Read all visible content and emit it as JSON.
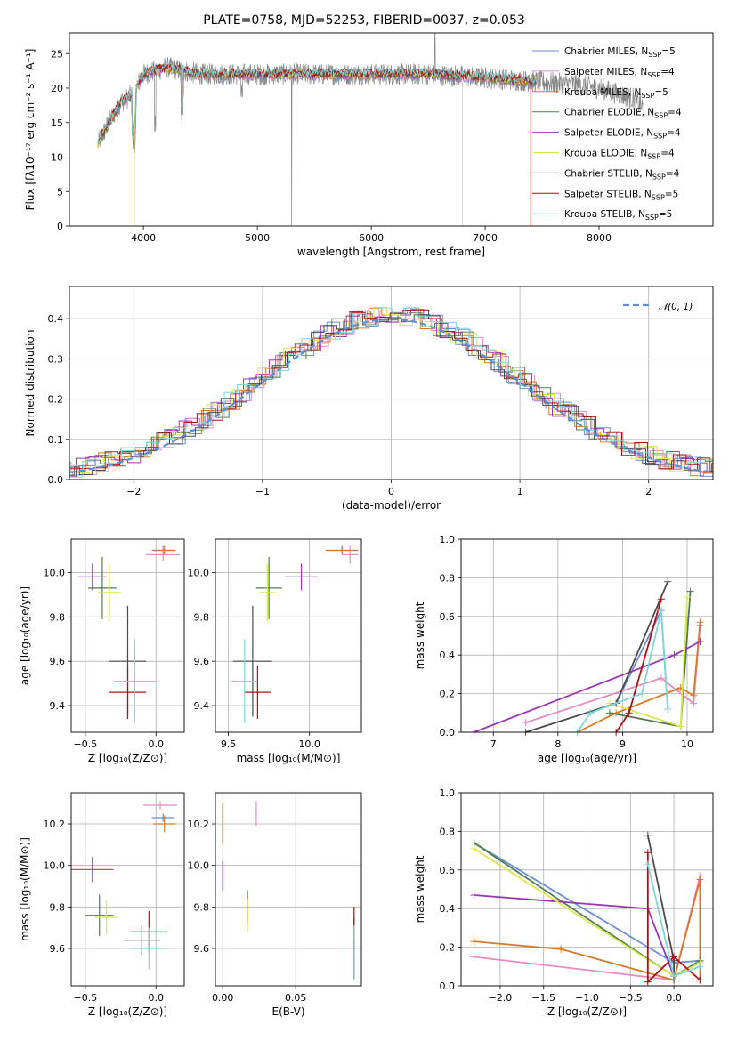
{
  "colors": [
    "#6a8fd6",
    "#e88ac4",
    "#d77a28",
    "#4f7d4f",
    "#9b35b5",
    "#d8e84a",
    "#4a4a4a",
    "#b01010",
    "#7ed7d8"
  ],
  "chart_data": [
    {
      "id": "spectrum",
      "type": "line",
      "title": "PLATE=0758, MJD=52253, FIBERID=0037, z=0.053",
      "xlabel": "wavelength [Angstrom, rest frame]",
      "ylabel": "Flux [fλ10⁻¹⁷ erg cm⁻² s⁻¹ A⁻¹]",
      "xlim": [
        3350,
        9000
      ],
      "ylim": [
        0,
        28
      ],
      "xticks": [
        "4000",
        "5000",
        "6000",
        "7000",
        "8000"
      ],
      "yticks": [
        "0",
        "5",
        "10",
        "15",
        "20",
        "25"
      ],
      "legend_position": "top-right",
      "series": [
        {
          "name": "Chabrier MILES, N",
          "sub": "SSP",
          "eq": "=5"
        },
        {
          "name": "Salpeter MILES, N",
          "sub": "SSP",
          "eq": "=4"
        },
        {
          "name": "Kroupa MILES, N",
          "sub": "SSP",
          "eq": "=5"
        },
        {
          "name": "Chabrier ELODIE, N",
          "sub": "SSP",
          "eq": "=4"
        },
        {
          "name": "Salpeter ELODIE, N",
          "sub": "SSP",
          "eq": "=4"
        },
        {
          "name": "Kroupa ELODIE, N",
          "sub": "SSP",
          "eq": "=4"
        },
        {
          "name": "Chabrier STELIB, N",
          "sub": "SSP",
          "eq": "=4"
        },
        {
          "name": "Salpeter STELIB, N",
          "sub": "SSP",
          "eq": "=5"
        },
        {
          "name": "Kroupa STELIB, N",
          "sub": "SSP",
          "eq": "=5"
        }
      ],
      "approx_continuum": {
        "x": [
          3600,
          3700,
          3800,
          3900,
          4000,
          4200,
          4500,
          5000,
          5500,
          6000,
          6500,
          7000,
          7400,
          7800,
          8000,
          8300,
          8400
        ],
        "y": [
          12,
          15,
          18,
          19,
          22,
          23,
          22,
          22,
          22,
          22,
          22,
          21.5,
          21,
          20.5,
          20,
          18.5,
          17
        ]
      }
    },
    {
      "id": "residual-hist",
      "type": "line",
      "xlabel": "(data-model)/error",
      "ylabel": "Normed distribution",
      "xlim": [
        -2.5,
        2.5
      ],
      "ylim": [
        0,
        0.48
      ],
      "xticks": [
        "−2",
        "−1",
        "0",
        "1",
        "2"
      ],
      "yticks": [
        "0.0",
        "0.1",
        "0.2",
        "0.3",
        "0.4"
      ],
      "legend": "𝒩(0, 1)",
      "legend_position": "top-right"
    },
    {
      "id": "age-vs-Z",
      "type": "scatter",
      "xlabel": "Z [log₁₀(Z/Z⊙)]",
      "ylabel": "age  [log₁₀(age/yr)]",
      "xlim": [
        -0.6,
        0.2
      ],
      "ylim": [
        9.28,
        10.15
      ],
      "xticks": [
        "−0.5",
        "0.0"
      ],
      "yticks": [
        "9.4",
        "9.6",
        "9.8",
        "10.0"
      ]
    },
    {
      "id": "age-vs-mass",
      "type": "scatter",
      "xlabel": "mass [log₁₀(M/M⊙)]",
      "xlim": [
        9.42,
        10.32
      ],
      "ylim": [
        9.28,
        10.15
      ],
      "xticks": [
        "9.5",
        "10.0"
      ],
      "yticks": [
        "9.4",
        "9.6",
        "9.8",
        "10.0"
      ]
    },
    {
      "id": "weight-vs-age",
      "type": "line",
      "xlabel": "age  [log₁₀(age/yr)]",
      "ylabel": "mass weight",
      "xlim": [
        6.5,
        10.4
      ],
      "ylim": [
        0,
        1.0
      ],
      "xticks": [
        "7",
        "8",
        "9",
        "10"
      ],
      "yticks": [
        "0.0",
        "0.2",
        "0.4",
        "0.6",
        "0.8",
        "1.0"
      ]
    },
    {
      "id": "mass-vs-Z",
      "type": "scatter",
      "xlabel": "Z [log₁₀(Z/Z⊙)]",
      "ylabel": "mass [log₁₀(M/M⊙)]",
      "xlim": [
        -0.6,
        0.2
      ],
      "ylim": [
        9.42,
        10.35
      ],
      "xticks": [
        "−0.5",
        "0.0"
      ],
      "yticks": [
        "9.6",
        "9.8",
        "10.0",
        "10.2"
      ]
    },
    {
      "id": "mass-vs-EBV",
      "type": "scatter",
      "xlabel": "E(B-V)",
      "xlim": [
        -0.005,
        0.095
      ],
      "ylim": [
        9.42,
        10.35
      ],
      "xticks": [
        "0.00",
        "0.05"
      ],
      "yticks": [
        "9.6",
        "9.8",
        "10.0",
        "10.2"
      ]
    },
    {
      "id": "weight-vs-Z",
      "type": "line",
      "xlabel": "Z [log₁₀(Z/Z⊙)]",
      "ylabel": "mass weight",
      "xlim": [
        -2.45,
        0.45
      ],
      "ylim": [
        0,
        1.0
      ],
      "xticks": [
        "−2.0",
        "−1.5",
        "−1.0",
        "−0.5",
        "0.0"
      ],
      "yticks": [
        "0.0",
        "0.2",
        "0.4",
        "0.6",
        "0.8",
        "1.0"
      ]
    }
  ]
}
